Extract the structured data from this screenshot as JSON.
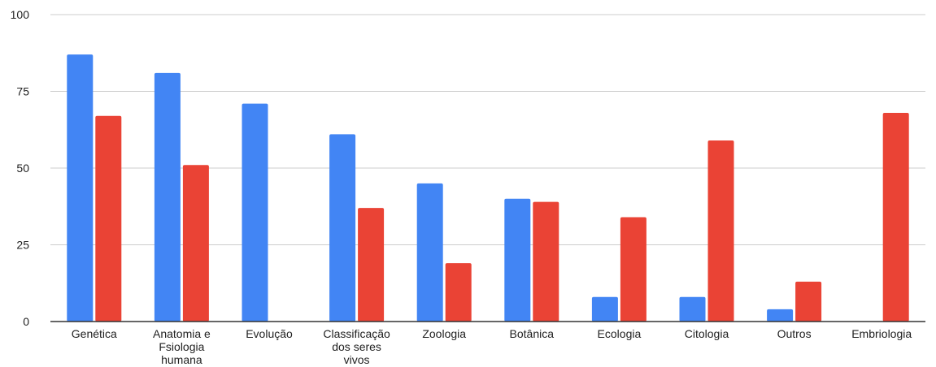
{
  "chart_data": {
    "type": "bar",
    "title": "",
    "xlabel": "",
    "ylabel": "",
    "ylim": [
      0,
      100
    ],
    "yticks": [
      0,
      25,
      50,
      75,
      100
    ],
    "grid": true,
    "legend": "none",
    "categories": [
      [
        "Genética"
      ],
      [
        "Anatomia e",
        "Fsiologia",
        "humana"
      ],
      [
        "Evolução"
      ],
      [
        "Classificação",
        "dos seres",
        "vivos"
      ],
      [
        "Zoologia"
      ],
      [
        "Botânica"
      ],
      [
        "Ecologia"
      ],
      [
        "Citologia"
      ],
      [
        "Outros"
      ],
      [
        "Embriologia"
      ]
    ],
    "series": [
      {
        "color": "#4285f4",
        "values": [
          87,
          81,
          71,
          61,
          45,
          40,
          8,
          8,
          4,
          0
        ]
      },
      {
        "color": "#ea4335",
        "values": [
          67,
          51,
          0,
          37,
          19,
          39,
          34,
          59,
          13,
          68
        ]
      }
    ]
  }
}
